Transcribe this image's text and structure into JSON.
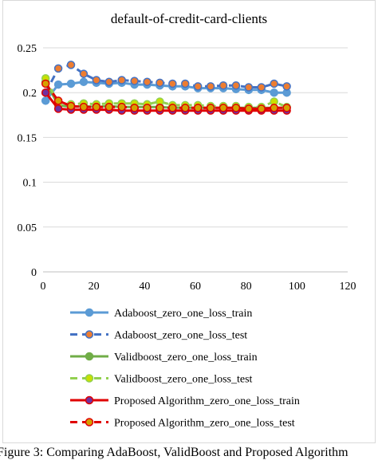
{
  "chart_data": {
    "type": "line",
    "title": "default-of-credit-card-clients",
    "xlabel": "",
    "ylabel": "",
    "xlim": [
      0,
      120
    ],
    "ylim": [
      0,
      0.25
    ],
    "x_ticks": [
      0,
      20,
      40,
      60,
      80,
      100,
      120
    ],
    "x_tick_labels": [
      "0",
      "20",
      "40",
      "60",
      "80",
      "100",
      "120"
    ],
    "y_ticks": [
      0,
      0.05,
      0.1,
      0.15,
      0.2,
      0.25
    ],
    "y_tick_labels": [
      "0",
      "0.05",
      "0.1",
      "0.15",
      "0.2",
      "0.25"
    ],
    "grid": "horizontal",
    "legend_position": "bottom",
    "x": [
      1,
      6,
      11,
      16,
      21,
      26,
      31,
      36,
      41,
      46,
      51,
      56,
      61,
      66,
      71,
      76,
      81,
      86,
      91,
      96
    ],
    "series": [
      {
        "name": "Adaboost_zero_one_loss_train",
        "color": "#5b9bd5",
        "marker_color": "#5b9bd5",
        "dash": "solid",
        "values": [
          0.191,
          0.209,
          0.21,
          0.212,
          0.211,
          0.21,
          0.211,
          0.209,
          0.209,
          0.208,
          0.207,
          0.207,
          0.205,
          0.205,
          0.205,
          0.204,
          0.203,
          0.203,
          0.2,
          0.2
        ]
      },
      {
        "name": "Adaboost_zero_one_loss_test",
        "color": "#4472c4",
        "marker_color": "#ed7d31",
        "dash": "dashed",
        "values": [
          0.2,
          0.227,
          0.231,
          0.221,
          0.214,
          0.212,
          0.214,
          0.213,
          0.212,
          0.211,
          0.21,
          0.21,
          0.207,
          0.207,
          0.208,
          0.208,
          0.206,
          0.206,
          0.21,
          0.207
        ]
      },
      {
        "name": "Validboost_zero_one_loss_train",
        "color": "#70ad47",
        "marker_color": "#70ad47",
        "dash": "solid",
        "values": [
          0.212,
          0.186,
          0.184,
          0.185,
          0.184,
          0.185,
          0.184,
          0.184,
          0.184,
          0.184,
          0.183,
          0.183,
          0.183,
          0.183,
          0.183,
          0.183,
          0.183,
          0.183,
          0.183,
          0.183
        ]
      },
      {
        "name": "Validboost_zero_one_loss_test",
        "color": "#92d050",
        "marker_color": "#c9e000",
        "dash": "dashed",
        "values": [
          0.216,
          0.188,
          0.187,
          0.188,
          0.187,
          0.188,
          0.188,
          0.188,
          0.187,
          0.19,
          0.186,
          0.186,
          0.186,
          0.185,
          0.185,
          0.185,
          0.184,
          0.184,
          0.19,
          0.184
        ]
      },
      {
        "name": "Proposed Algorithm_zero_one_loss_train",
        "color": "#e00000",
        "marker_color": "#7030a0",
        "dash": "solid",
        "values": [
          0.2,
          0.182,
          0.181,
          0.181,
          0.181,
          0.181,
          0.18,
          0.18,
          0.18,
          0.18,
          0.18,
          0.18,
          0.18,
          0.18,
          0.18,
          0.18,
          0.18,
          0.18,
          0.18,
          0.18
        ]
      },
      {
        "name": "Proposed Algorithm_zero_one_loss_test",
        "color": "#e00000",
        "marker_color": "#d5a000",
        "dash": "dashed",
        "values": [
          0.21,
          0.191,
          0.185,
          0.184,
          0.184,
          0.184,
          0.184,
          0.183,
          0.183,
          0.183,
          0.183,
          0.183,
          0.183,
          0.183,
          0.183,
          0.183,
          0.182,
          0.182,
          0.183,
          0.183
        ]
      }
    ]
  },
  "caption": "Figure 3: Comparing AdaBoost, ValidBoost and Proposed Algorithm"
}
